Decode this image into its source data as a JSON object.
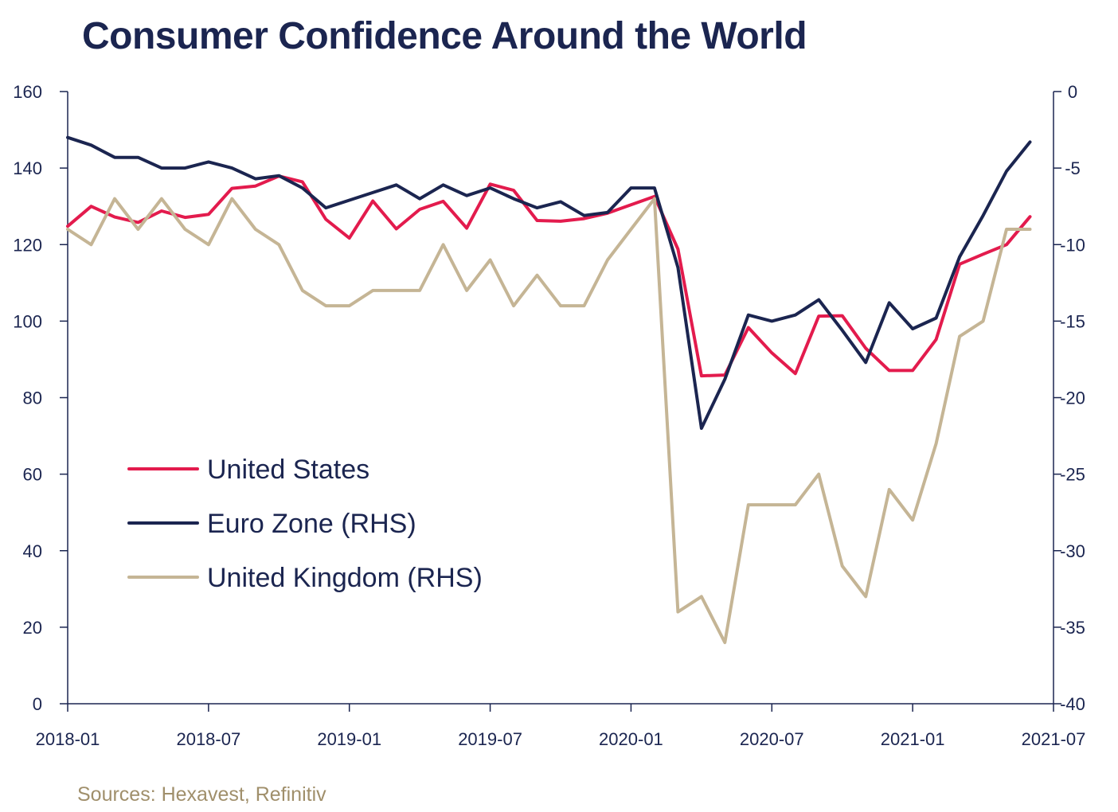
{
  "title": "Consumer Confidence Around the World",
  "source": "Sources: Hexavest, Refinitiv",
  "colors": {
    "text": "#1b2550",
    "axis": "#1b2550",
    "source": "#a08f6b"
  },
  "chart_data": {
    "type": "line",
    "x": [
      "2018-01",
      "2018-02",
      "2018-03",
      "2018-04",
      "2018-05",
      "2018-06",
      "2018-07",
      "2018-08",
      "2018-09",
      "2018-10",
      "2018-11",
      "2018-12",
      "2019-01",
      "2019-02",
      "2019-03",
      "2019-04",
      "2019-05",
      "2019-06",
      "2019-07",
      "2019-08",
      "2019-09",
      "2019-10",
      "2019-11",
      "2019-12",
      "2020-01",
      "2020-02",
      "2020-03",
      "2020-04",
      "2020-05",
      "2020-06",
      "2020-07",
      "2020-08",
      "2020-09",
      "2020-10",
      "2020-11",
      "2020-12",
      "2021-01",
      "2021-02",
      "2021-03",
      "2021-04",
      "2021-05",
      "2021-06"
    ],
    "x_ticks": [
      "2018-01",
      "2018-07",
      "2019-01",
      "2019-07",
      "2020-01",
      "2020-07",
      "2021-01",
      "2021-07"
    ],
    "y_left": {
      "ticks": [
        "0",
        "20",
        "40",
        "60",
        "80",
        "100",
        "120",
        "140",
        "160"
      ],
      "lim": [
        0,
        160
      ]
    },
    "y_right": {
      "ticks": [
        "-40",
        "-35",
        "-30",
        "-25",
        "-20",
        "-15",
        "-10",
        "-5",
        "0"
      ],
      "lim": [
        -40,
        0
      ]
    },
    "series": [
      {
        "name": "United States",
        "axis": "left",
        "color": "#e31b4d",
        "values": [
          124.8,
          130,
          127.2,
          125.8,
          128.8,
          127.1,
          127.9,
          134.7,
          135.3,
          137.9,
          136.4,
          126.6,
          121.7,
          131.4,
          124.1,
          129.2,
          131.3,
          124.3,
          135.8,
          134.2,
          126.3,
          126.1,
          126.8,
          128.2,
          130.4,
          132.6,
          118.8,
          85.7,
          85.9,
          98.3,
          91.7,
          86.3,
          101.3,
          101.4,
          92.9,
          87.1,
          87.1,
          95.2,
          114.9,
          117.5,
          120,
          127.3
        ]
      },
      {
        "name": "Euro Zone (RHS)",
        "axis": "right",
        "color": "#1b2550",
        "values": [
          -3,
          -3.5,
          -4.3,
          -4.3,
          -5,
          -5,
          -4.6,
          -5,
          -5.7,
          -5.5,
          -6.3,
          -7.6,
          -7.1,
          -6.6,
          -6.1,
          -7,
          -6.1,
          -6.8,
          -6.3,
          -7,
          -7.6,
          -7.2,
          -8.1,
          -7.9,
          -6.3,
          -6.3,
          -11.5,
          -22,
          -18.8,
          -14.6,
          -15,
          -14.6,
          -13.6,
          -15.6,
          -17.7,
          -13.8,
          -15.5,
          -14.8,
          -10.8,
          -8.1,
          -5.2,
          -3.3
        ]
      },
      {
        "name": "United Kingdom (RHS)",
        "axis": "right",
        "color": "#c5b595",
        "values": [
          -9,
          -10,
          -7,
          -9,
          -7,
          -9,
          -10,
          -7,
          -9,
          -10,
          -13,
          -14,
          -14,
          -13,
          -13,
          -13,
          -10,
          -13,
          -11,
          -14,
          -12,
          -14,
          -14,
          -11,
          -9,
          -7,
          -34,
          -33,
          -36,
          -27,
          -27,
          -27,
          -25,
          -31,
          -33,
          -26,
          -28,
          -23,
          -16,
          -15,
          -9,
          -9
        ]
      }
    ],
    "legend": {
      "placement": "center-left",
      "entries": [
        "United States",
        "Euro Zone (RHS)",
        "United Kingdom (RHS)"
      ]
    },
    "grid": false
  }
}
